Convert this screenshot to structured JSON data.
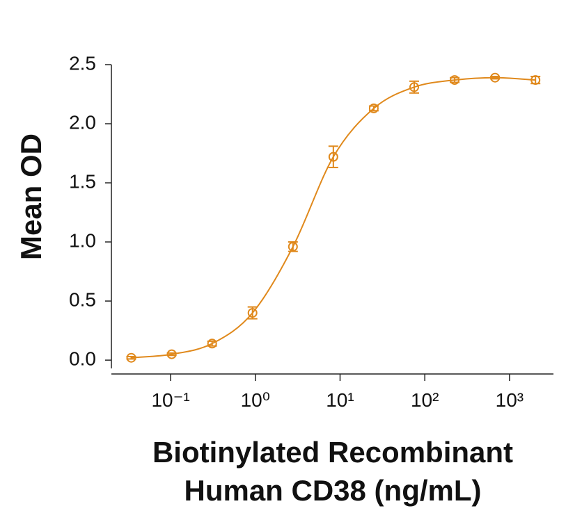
{
  "chart_data": {
    "type": "scatter",
    "xlabel": [
      "Biotinylated Recombinant",
      "Human CD38 (ng/mL)"
    ],
    "ylabel": "Mean OD",
    "xscale": "log",
    "xlim": [
      0.02,
      3300
    ],
    "ylim": [
      -0.07,
      2.5
    ],
    "xticks": [
      {
        "value": 0.1,
        "label": "10⁻¹"
      },
      {
        "value": 1,
        "label": "10⁰"
      },
      {
        "value": 10,
        "label": "10¹"
      },
      {
        "value": 100,
        "label": "10²"
      },
      {
        "value": 1000,
        "label": "10³"
      }
    ],
    "yticks": [
      {
        "value": 0,
        "label": "0.0"
      },
      0.5,
      {
        "value": 1,
        "label": "1.0"
      },
      1.5,
      {
        "value": 2,
        "label": "2.0"
      },
      2.5
    ],
    "grid": false,
    "series": [
      {
        "color": "#e0891c",
        "x": [
          0.0343,
          0.103,
          0.309,
          0.926,
          2.78,
          8.33,
          25,
          75,
          225,
          675,
          2025
        ],
        "values": [
          0.02,
          0.05,
          0.14,
          0.4,
          0.96,
          1.72,
          2.13,
          2.31,
          2.37,
          2.39,
          2.37
        ],
        "errors": [
          0.01,
          0.01,
          0.02,
          0.05,
          0.04,
          0.09,
          0.02,
          0.05,
          0.02,
          0.01,
          0.03
        ]
      }
    ]
  }
}
